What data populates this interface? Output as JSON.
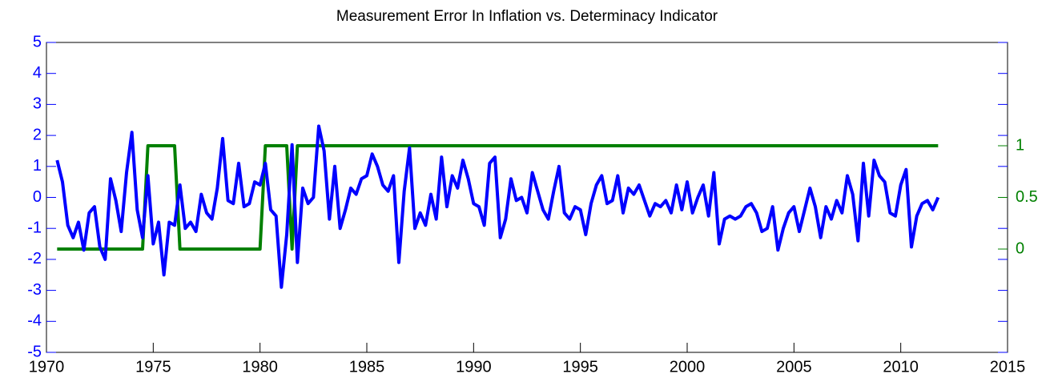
{
  "chart_data": {
    "type": "line",
    "title": "Measurement Error In Inflation vs. Determinacy Indicator",
    "x": [
      1970.5,
      1970.75,
      1971,
      1971.25,
      1971.5,
      1971.75,
      1972,
      1972.25,
      1972.5,
      1972.75,
      1973,
      1973.25,
      1973.5,
      1973.75,
      1974,
      1974.25,
      1974.5,
      1974.75,
      1975,
      1975.25,
      1975.5,
      1975.75,
      1976,
      1976.25,
      1976.5,
      1976.75,
      1977,
      1977.25,
      1977.5,
      1977.75,
      1978,
      1978.25,
      1978.5,
      1978.75,
      1979,
      1979.25,
      1979.5,
      1979.75,
      1980,
      1980.25,
      1980.5,
      1980.75,
      1981,
      1981.25,
      1981.5,
      1981.75,
      1982,
      1982.25,
      1982.5,
      1982.75,
      1983,
      1983.25,
      1983.5,
      1983.75,
      1984,
      1984.25,
      1984.5,
      1984.75,
      1985,
      1985.25,
      1985.5,
      1985.75,
      1986,
      1986.25,
      1986.5,
      1986.75,
      1987,
      1987.25,
      1987.5,
      1987.75,
      1988,
      1988.25,
      1988.5,
      1988.75,
      1989,
      1989.25,
      1989.5,
      1989.75,
      1990,
      1990.25,
      1990.5,
      1990.75,
      1991,
      1991.25,
      1991.5,
      1991.75,
      1992,
      1992.25,
      1992.5,
      1992.75,
      1993,
      1993.25,
      1993.5,
      1993.75,
      1994,
      1994.25,
      1994.5,
      1994.75,
      1995,
      1995.25,
      1995.5,
      1995.75,
      1996,
      1996.25,
      1996.5,
      1996.75,
      1997,
      1997.25,
      1997.5,
      1997.75,
      1998,
      1998.25,
      1998.5,
      1998.75,
      1999,
      1999.25,
      1999.5,
      1999.75,
      2000,
      2000.25,
      2000.5,
      2000.75,
      2001,
      2001.25,
      2001.5,
      2001.75,
      2002,
      2002.25,
      2002.5,
      2002.75,
      2003,
      2003.25,
      2003.5,
      2003.75,
      2004,
      2004.25,
      2004.5,
      2004.75,
      2005,
      2005.25,
      2005.5,
      2005.75,
      2006,
      2006.25,
      2006.5,
      2006.75,
      2007,
      2007.25,
      2007.5,
      2007.75,
      2008,
      2008.25,
      2008.5,
      2008.75,
      2009,
      2009.25,
      2009.5,
      2009.75,
      2010,
      2010.25,
      2010.5,
      2010.75,
      2011,
      2011.25,
      2011.5,
      2011.75
    ],
    "series": [
      {
        "color": "#0000ff",
        "values": [
          1.2,
          0.5,
          -0.9,
          -1.3,
          -0.8,
          -1.7,
          -0.5,
          -0.3,
          -1.6,
          -2.0,
          0.6,
          -0.1,
          -1.1,
          0.8,
          2.1,
          -0.4,
          -1.3,
          0.7,
          -1.5,
          -0.8,
          -2.5,
          -0.8,
          -0.9,
          0.4,
          -1.0,
          -0.8,
          -1.1,
          0.1,
          -0.5,
          -0.7,
          0.3,
          1.9,
          -0.1,
          -0.2,
          1.1,
          -0.3,
          -0.2,
          0.5,
          0.4,
          1.1,
          -0.4,
          -0.6,
          -2.9,
          -1.2,
          1.7,
          -2.1,
          0.3,
          -0.2,
          0.0,
          2.3,
          1.5,
          -0.7,
          1.0,
          -1.0,
          -0.4,
          0.3,
          0.1,
          0.6,
          0.7,
          1.4,
          1.0,
          0.4,
          0.2,
          0.7,
          -2.1,
          0.2,
          1.6,
          -1.0,
          -0.5,
          -0.9,
          0.1,
          -0.7,
          1.3,
          -0.3,
          0.7,
          0.3,
          1.2,
          0.6,
          -0.2,
          -0.3,
          -0.9,
          1.1,
          1.3,
          -1.3,
          -0.7,
          0.6,
          -0.1,
          0.0,
          -0.5,
          0.8,
          0.2,
          -0.4,
          -0.7,
          0.2,
          1.0,
          -0.5,
          -0.7,
          -0.3,
          -0.4,
          -1.2,
          -0.2,
          0.4,
          0.7,
          -0.2,
          -0.1,
          0.7,
          -0.5,
          0.3,
          0.1,
          0.4,
          -0.1,
          -0.6,
          -0.2,
          -0.3,
          -0.1,
          -0.5,
          0.4,
          -0.4,
          0.5,
          -0.5,
          0.0,
          0.4,
          -0.6,
          0.8,
          -1.5,
          -0.7,
          -0.6,
          -0.7,
          -0.6,
          -0.3,
          -0.2,
          -0.5,
          -1.1,
          -1.0,
          -0.3,
          -1.7,
          -1.0,
          -0.5,
          -0.3,
          -1.1,
          -0.4,
          0.3,
          -0.3,
          -1.3,
          -0.3,
          -0.7,
          -0.1,
          -0.5,
          0.7,
          0.1,
          -1.4,
          1.1,
          -0.6,
          1.2,
          0.7,
          0.5,
          -0.5,
          -0.6,
          0.4,
          0.9,
          -1.6,
          -0.6,
          -0.2,
          -0.1,
          -0.4,
          0.0
        ]
      },
      {
        "color": "#008000",
        "axis": "y2",
        "values": [
          0,
          0,
          0,
          0,
          0,
          0,
          0,
          0,
          0,
          0,
          0,
          0,
          0,
          0,
          0,
          0,
          0,
          1,
          1,
          1,
          1,
          1,
          1,
          0,
          0,
          0,
          0,
          0,
          0,
          0,
          0,
          0,
          0,
          0,
          0,
          0,
          0,
          0,
          0,
          1,
          1,
          1,
          1,
          1,
          0,
          1,
          1,
          1,
          1,
          1,
          1,
          1,
          1,
          1,
          1,
          1,
          1,
          1,
          1,
          1,
          1,
          1,
          1,
          1,
          1,
          1,
          1,
          1,
          1,
          1,
          1,
          1,
          1,
          1,
          1,
          1,
          1,
          1,
          1,
          1,
          1,
          1,
          1,
          1,
          1,
          1,
          1,
          1,
          1,
          1,
          1,
          1,
          1,
          1,
          1,
          1,
          1,
          1,
          1,
          1,
          1,
          1,
          1,
          1,
          1,
          1,
          1,
          1,
          1,
          1,
          1,
          1,
          1,
          1,
          1,
          1,
          1,
          1,
          1,
          1,
          1,
          1,
          1,
          1,
          1,
          1,
          1,
          1,
          1,
          1,
          1,
          1,
          1,
          1,
          1,
          1,
          1,
          1,
          1,
          1,
          1,
          1,
          1,
          1,
          1,
          1,
          1,
          1,
          1,
          1,
          1,
          1,
          1,
          1,
          1,
          1,
          1,
          1,
          1,
          1,
          1,
          1,
          1,
          1,
          1,
          1
        ]
      }
    ],
    "xlim": [
      1970,
      2015
    ],
    "xticks": [
      1970,
      1975,
      1980,
      1985,
      1990,
      1995,
      2000,
      2005,
      2010,
      2015
    ],
    "ylim": [
      -5,
      5
    ],
    "yticks": [
      -5,
      -4,
      -3,
      -2,
      -1,
      0,
      1,
      2,
      3,
      4,
      5
    ],
    "y2lim": [
      -1,
      2
    ],
    "y2ticks": [
      0,
      0.5,
      1
    ]
  }
}
